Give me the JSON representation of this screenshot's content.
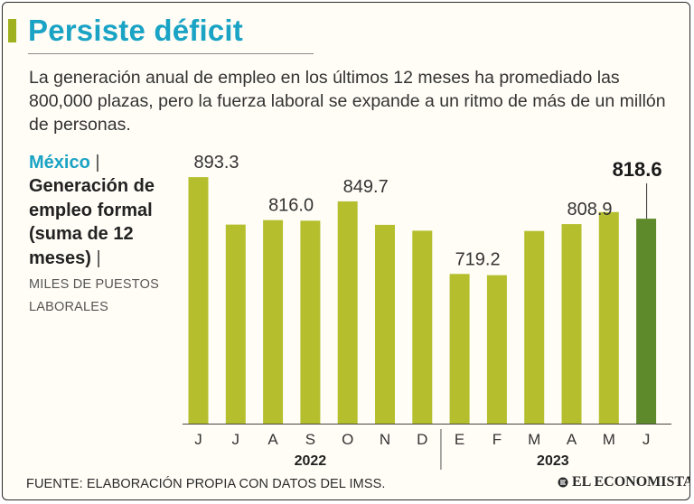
{
  "title": "Persiste déficit",
  "subtitle": "La generación anual de empleo en los últimos 12 meses ha promediado las 800,000 plazas, pero la fuerza laboral se expande a un ritmo de más de un millón de personas.",
  "side": {
    "country": "México",
    "separator": "|",
    "title": "Generación de empleo formal (suma de 12 meses)",
    "units": "MILES DE PUESTOS LABORALES"
  },
  "source": "FUENTE: ELABORACIÓN PROPIA CON DATOS DEL IMSS.",
  "brand": "EL ECONOMISTA",
  "colors": {
    "title": "#1aa3c4",
    "bar": "#b5bf2e",
    "bar_highlight": "#5f8a2b",
    "accent": "#9fb11e"
  },
  "chart_data": {
    "type": "bar",
    "title": "Generación de empleo formal (suma de 12 meses)",
    "ylabel": "Miles de puestos laborales",
    "xlabel": "",
    "categories": [
      "J",
      "J",
      "A",
      "S",
      "O",
      "N",
      "D",
      "E",
      "F",
      "M",
      "A",
      "M",
      "J"
    ],
    "values": [
      893.3,
      808.0,
      816.0,
      815.0,
      849.7,
      807.5,
      797.0,
      719.2,
      717.0,
      796.5,
      808.9,
      830.5,
      818.6
    ],
    "data_labels": [
      {
        "index": 0,
        "text": "893.3"
      },
      {
        "index": 2,
        "text": "816.0"
      },
      {
        "index": 4,
        "text": "849.7"
      },
      {
        "index": 7,
        "text": "719.2"
      },
      {
        "index": 10,
        "text": "808.9"
      },
      {
        "index": 12,
        "text": "818.6",
        "highlight": true
      }
    ],
    "highlight_index": 12,
    "groups": [
      {
        "label": "2022",
        "start": 0,
        "end": 6
      },
      {
        "label": "2023",
        "start": 7,
        "end": 12
      }
    ],
    "ylim": [
      450,
      900
    ],
    "grid": false
  }
}
